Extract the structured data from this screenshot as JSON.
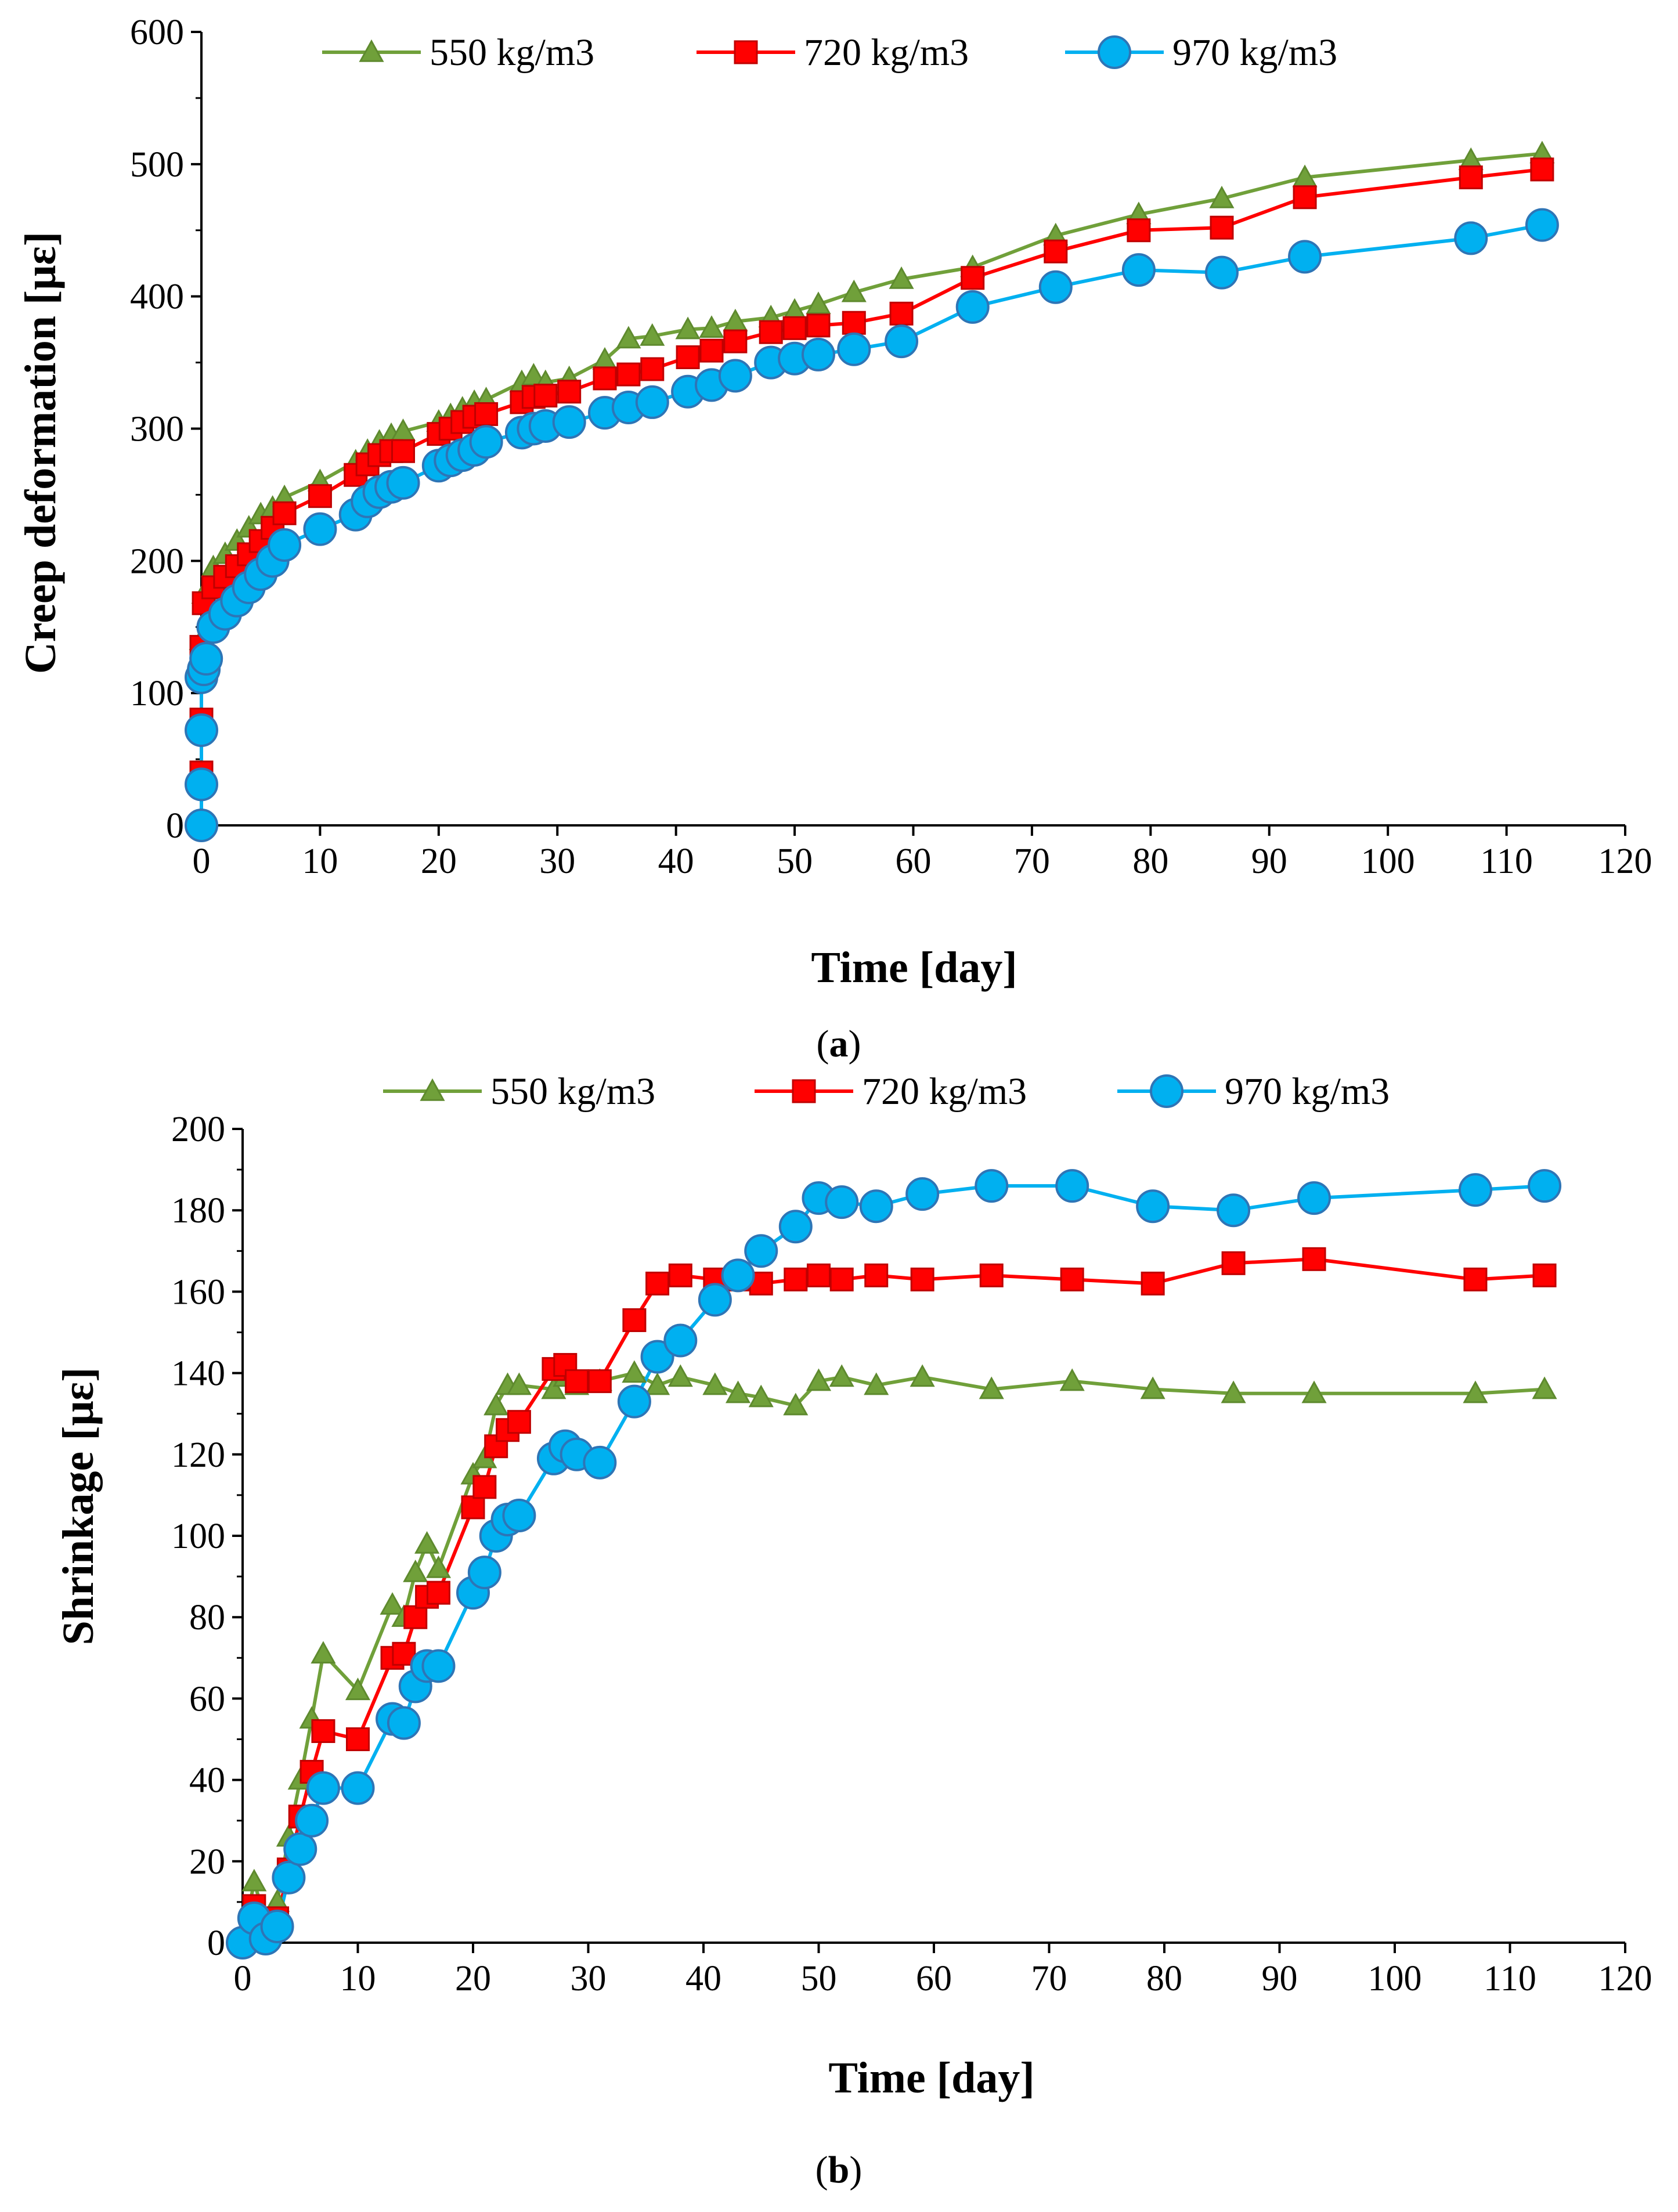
{
  "chart_data": [
    {
      "type": "line",
      "panel_label": "a",
      "xlabel": "Time [day]",
      "ylabel": "Creep deformation [με]",
      "xlim": [
        0,
        120
      ],
      "ylim": [
        0,
        600
      ],
      "x_ticks": [
        0,
        10,
        20,
        30,
        40,
        50,
        60,
        70,
        80,
        90,
        100,
        110,
        120
      ],
      "y_ticks": [
        0,
        100,
        200,
        300,
        400,
        500,
        600
      ],
      "legend_position": "top",
      "series": [
        {
          "name": "550 kg/m3",
          "color": "#70A03A",
          "marker": "triangle",
          "x": [
            0,
            0,
            0,
            0,
            0.2,
            1,
            2,
            3,
            4,
            5,
            6,
            7,
            10,
            13,
            14,
            15,
            16,
            17,
            20,
            21,
            22,
            23,
            24,
            27,
            28,
            29,
            31,
            34,
            36,
            38,
            41,
            43,
            45,
            48,
            50,
            52,
            55,
            59,
            65,
            72,
            79,
            86,
            93,
            107,
            113
          ],
          "y": [
            0,
            40,
            80,
            140,
            175,
            195,
            205,
            215,
            225,
            235,
            240,
            248,
            260,
            275,
            283,
            290,
            295,
            298,
            305,
            310,
            315,
            320,
            322,
            335,
            340,
            335,
            338,
            352,
            368,
            370,
            375,
            376,
            381,
            384,
            389,
            394,
            403,
            413,
            422,
            446,
            462,
            474,
            490,
            503,
            508
          ]
        },
        {
          "name": "720 kg/m3",
          "color": "#FF0000",
          "marker": "square",
          "x": [
            0,
            0,
            0,
            0,
            0.2,
            1,
            2,
            3,
            4,
            5,
            6,
            7,
            10,
            13,
            14,
            15,
            16,
            17,
            20,
            21,
            22,
            23,
            24,
            27,
            28,
            29,
            31,
            34,
            36,
            38,
            41,
            43,
            45,
            48,
            50,
            52,
            55,
            59,
            65,
            72,
            79,
            86,
            93,
            107,
            113
          ],
          "y": [
            0,
            40,
            80,
            135,
            168,
            180,
            188,
            196,
            205,
            215,
            225,
            236,
            249,
            265,
            273,
            280,
            283,
            283,
            296,
            300,
            305,
            309,
            311,
            320,
            324,
            325,
            328,
            338,
            341,
            345,
            354,
            359,
            366,
            373,
            376,
            378,
            380,
            387,
            414,
            434,
            450,
            452,
            475,
            490,
            496
          ]
        },
        {
          "name": "970 kg/m3",
          "color": "#00B0F0",
          "marker": "circle",
          "x": [
            0,
            0,
            0,
            0,
            0.2,
            0.4,
            1,
            2,
            3,
            4,
            5,
            6,
            7,
            10,
            13,
            14,
            15,
            16,
            17,
            20,
            21,
            22,
            23,
            24,
            27,
            28,
            29,
            31,
            34,
            36,
            38,
            41,
            43,
            45,
            48,
            50,
            52,
            55,
            59,
            65,
            72,
            79,
            86,
            93,
            107,
            113
          ],
          "y": [
            0,
            31,
            72,
            112,
            118,
            126,
            150,
            160,
            170,
            180,
            190,
            200,
            212,
            224,
            235,
            245,
            252,
            256,
            259,
            272,
            276,
            280,
            284,
            290,
            297,
            300,
            302,
            305,
            312,
            316,
            320,
            328,
            333,
            340,
            350,
            353,
            356,
            360,
            366,
            392,
            407,
            420,
            418,
            430,
            444,
            454
          ]
        }
      ]
    },
    {
      "type": "line",
      "panel_label": "b",
      "xlabel": "Time [day]",
      "ylabel": "Shrinkage [με]",
      "xlim": [
        0,
        120
      ],
      "ylim": [
        0,
        200
      ],
      "x_ticks": [
        0,
        10,
        20,
        30,
        40,
        50,
        60,
        70,
        80,
        90,
        100,
        110,
        120
      ],
      "y_ticks": [
        0,
        20,
        40,
        60,
        80,
        100,
        120,
        140,
        160,
        180,
        200
      ],
      "legend_position": "top",
      "series": [
        {
          "name": "550 kg/m3",
          "color": "#70A03A",
          "marker": "triangle",
          "x": [
            0,
            1,
            2,
            3,
            4,
            5,
            6,
            7,
            10,
            13,
            14,
            15,
            16,
            17,
            20,
            21,
            22,
            23,
            24,
            27,
            28,
            29,
            31,
            34,
            36,
            38,
            41,
            43,
            45,
            48,
            50,
            52,
            55,
            59,
            65,
            72,
            79,
            86,
            93,
            107,
            113
          ],
          "y": [
            0,
            15,
            5,
            10,
            26,
            40,
            55,
            71,
            62,
            83,
            80,
            91,
            98,
            92,
            115,
            119,
            132,
            137,
            137,
            136,
            139,
            137,
            138,
            140,
            137,
            139,
            137,
            135,
            134,
            132,
            138,
            139,
            137,
            139,
            136,
            138,
            136,
            135,
            135,
            135,
            136
          ]
        },
        {
          "name": "720 kg/m3",
          "color": "#FF0000",
          "marker": "square",
          "x": [
            0,
            1,
            2,
            3,
            4,
            5,
            6,
            7,
            10,
            13,
            14,
            15,
            16,
            17,
            20,
            21,
            22,
            23,
            24,
            27,
            28,
            29,
            31,
            34,
            36,
            38,
            41,
            43,
            45,
            48,
            50,
            52,
            55,
            59,
            65,
            72,
            79,
            86,
            93,
            107,
            113
          ],
          "y": [
            0,
            9,
            3,
            6,
            18,
            31,
            42,
            52,
            50,
            70,
            71,
            80,
            85,
            86,
            107,
            112,
            122,
            126,
            128,
            141,
            142,
            138,
            138,
            153,
            162,
            164,
            163,
            163,
            162,
            163,
            164,
            163,
            164,
            163,
            164,
            163,
            162,
            167,
            168,
            163,
            164
          ]
        },
        {
          "name": "970 kg/m3",
          "color": "#00B0F0",
          "marker": "circle",
          "x": [
            0,
            1,
            2,
            3,
            4,
            5,
            6,
            7,
            10,
            13,
            14,
            15,
            16,
            17,
            20,
            21,
            22,
            23,
            24,
            27,
            28,
            29,
            31,
            34,
            36,
            38,
            41,
            43,
            45,
            48,
            50,
            52,
            55,
            59,
            65,
            72,
            79,
            86,
            93,
            107,
            113
          ],
          "y": [
            0,
            6,
            1,
            4,
            16,
            23,
            30,
            38,
            38,
            55,
            54,
            63,
            68,
            68,
            86,
            91,
            100,
            104,
            105,
            119,
            122,
            120,
            118,
            133,
            144,
            148,
            158,
            164,
            170,
            176,
            183,
            182,
            181,
            184,
            186,
            186,
            181,
            180,
            183,
            185,
            186
          ]
        }
      ]
    }
  ]
}
